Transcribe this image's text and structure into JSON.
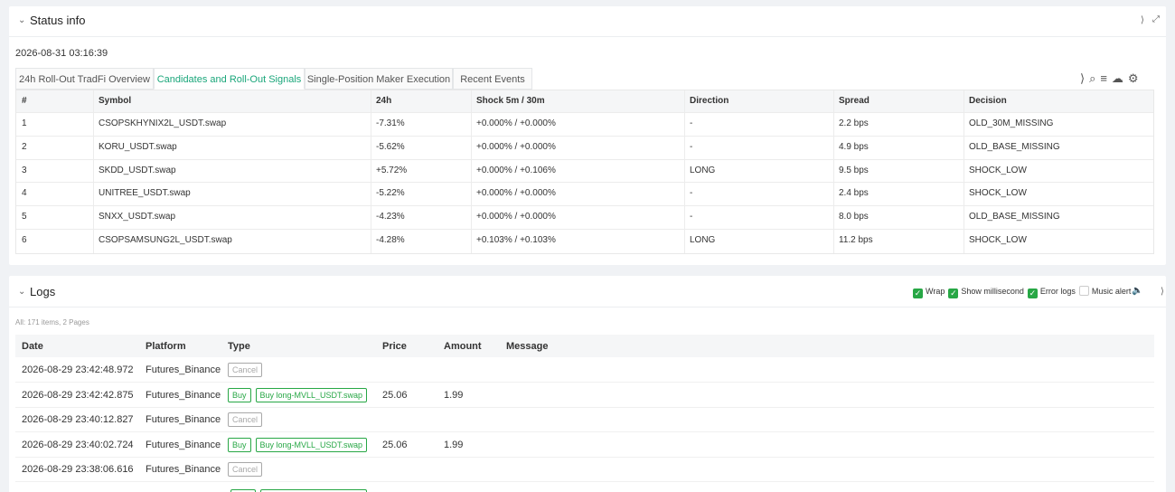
{
  "status_panel": {
    "title": "Status info",
    "timestamp": "2026-08-31 03:16:39",
    "tabs": [
      "24h Roll-Out TradFi Overview",
      "Candidates and Roll-Out Signals",
      "Single-Position Maker Execution",
      "Recent Events"
    ],
    "active_tab": 1,
    "table": {
      "columns": [
        "#",
        "Symbol",
        "24h",
        "Shock 5m / 30m",
        "Direction",
        "Spread",
        "Decision"
      ],
      "rows": [
        [
          "1",
          "CSOPSKHYNIX2L_USDT.swap",
          "-7.31%",
          "+0.000% / +0.000%",
          "-",
          "2.2 bps",
          "OLD_30M_MISSING"
        ],
        [
          "2",
          "KORU_USDT.swap",
          "-5.62%",
          "+0.000% / +0.000%",
          "-",
          "4.9 bps",
          "OLD_BASE_MISSING"
        ],
        [
          "3",
          "SKDD_USDT.swap",
          "+5.72%",
          "+0.000% / +0.106%",
          "LONG",
          "9.5 bps",
          "SHOCK_LOW"
        ],
        [
          "4",
          "UNITREE_USDT.swap",
          "-5.22%",
          "+0.000% / +0.000%",
          "-",
          "2.4 bps",
          "SHOCK_LOW"
        ],
        [
          "5",
          "SNXX_USDT.swap",
          "-4.23%",
          "+0.000% / +0.000%",
          "-",
          "8.0 bps",
          "OLD_BASE_MISSING"
        ],
        [
          "6",
          "CSOPSAMSUNG2L_USDT.swap",
          "-4.28%",
          "+0.103% / +0.103%",
          "LONG",
          "11.2 bps",
          "SHOCK_LOW"
        ]
      ]
    }
  },
  "logs_panel": {
    "title": "Logs",
    "options": [
      {
        "label": "Wrap",
        "checked": true
      },
      {
        "label": "Show millisecond",
        "checked": true
      },
      {
        "label": "Error logs",
        "checked": true
      },
      {
        "label": "Music alert",
        "checked": false
      }
    ],
    "summary": "All: 171 items, 2 Pages",
    "table": {
      "columns": [
        "Date",
        "Platform",
        "Type",
        "Price",
        "Amount",
        "Message"
      ],
      "rows": [
        {
          "date": "2026-08-29 23:42:48.972",
          "platform": "Futures_Binance",
          "tags": [
            {
              "text": "Cancel",
              "color": "#a8a8a8"
            }
          ]
        },
        {
          "date": "2026-08-29 23:42:42.875",
          "platform": "Futures_Binance",
          "tags": [
            {
              "text": "Buy",
              "color": "#27a745"
            },
            {
              "text": "Buy long-MVLL_USDT.swap",
              "color": "#27a745"
            }
          ],
          "price": 25.06,
          "amount": 1.99
        },
        {
          "date": "2026-08-29 23:40:12.827",
          "platform": "Futures_Binance",
          "tags": [
            {
              "text": "Cancel",
              "color": "#a8a8a8"
            }
          ]
        },
        {
          "date": "2026-08-29 23:40:02.724",
          "platform": "Futures_Binance",
          "tags": [
            {
              "text": "Buy",
              "color": "#27a745"
            },
            {
              "text": "Buy long-MVLL_USDT.swap",
              "color": "#27a745"
            }
          ],
          "price": 25.06,
          "amount": 1.99
        },
        {
          "date": "2026-08-29 23:38:06.616",
          "platform": "Futures_Binance",
          "tags": [
            {
              "text": "Cancel",
              "color": "#a8a8a8"
            }
          ]
        }
      ]
    }
  }
}
